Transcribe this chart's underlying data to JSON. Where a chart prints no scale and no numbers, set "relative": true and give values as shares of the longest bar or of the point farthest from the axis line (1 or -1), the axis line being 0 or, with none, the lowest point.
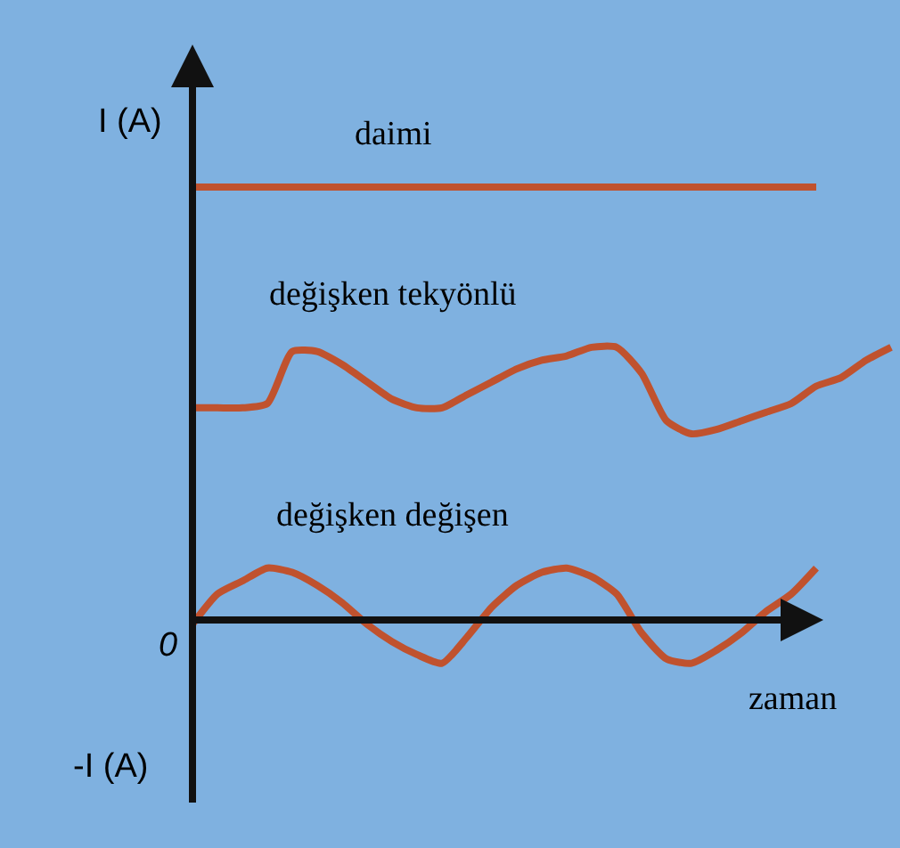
{
  "chart_data": {
    "type": "line",
    "relative": true,
    "xlabel": "zaman",
    "ylabel": "I (A)",
    "annotations": [
      "0",
      "-I (A)"
    ],
    "categories": [
      null,
      null,
      null,
      null,
      null,
      null,
      null,
      null,
      null,
      null,
      null,
      null,
      null,
      null,
      null,
      null,
      null,
      null,
      null,
      null,
      null,
      null,
      null,
      null,
      null,
      null,
      null,
      null,
      null
    ],
    "series": [
      {
        "name": "daimi",
        "color": "#c0522e",
        "values": [
          1,
          1,
          1,
          1,
          1,
          1,
          1,
          1,
          1,
          1,
          1,
          1,
          1,
          1,
          1,
          1,
          1,
          1,
          1,
          1,
          1,
          1,
          1,
          1,
          1,
          1,
          null,
          null,
          null
        ]
      },
      {
        "name": "değişken tekyönlü",
        "color": "#c0522e",
        "values": [
          0.49,
          0.49,
          0.49,
          0.5,
          0.62,
          0.62,
          0.59,
          0.55,
          0.51,
          0.49,
          0.49,
          0.52,
          0.55,
          0.58,
          0.6,
          0.61,
          0.63,
          0.63,
          0.57,
          0.46,
          0.43,
          0.44,
          0.46,
          0.48,
          0.5,
          0.54,
          0.56,
          0.6,
          0.63
        ]
      },
      {
        "name": "değişken değişen",
        "color": "#c0522e",
        "values": [
          -0.01,
          0.06,
          0.09,
          0.12,
          0.11,
          0.08,
          0.04,
          -0.01,
          -0.05,
          -0.08,
          -0.1,
          -0.04,
          0.03,
          0.08,
          0.11,
          0.12,
          0.1,
          0.06,
          -0.03,
          -0.09,
          -0.1,
          -0.07,
          -0.03,
          0.02,
          0.06,
          0.12,
          null,
          null,
          null
        ]
      }
    ],
    "grid": false,
    "legend": false,
    "line_style": "solid",
    "marker": "none"
  }
}
